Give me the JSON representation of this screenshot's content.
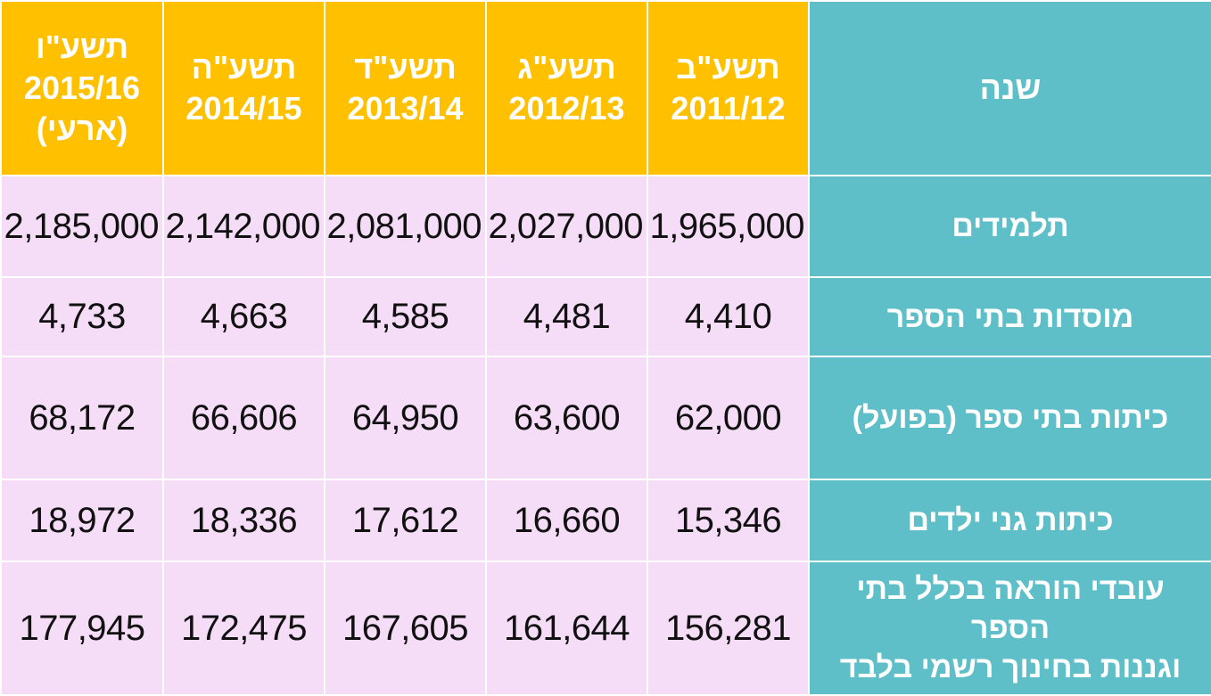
{
  "header": {
    "corner_label": "שנה",
    "years": [
      {
        "line1": "תשע\"ב",
        "line2": "2011/12",
        "line3": ""
      },
      {
        "line1": "תשע\"ג",
        "line2": "2012/13",
        "line3": ""
      },
      {
        "line1": "תשע\"ד",
        "line2": "2013/14",
        "line3": ""
      },
      {
        "line1": "תשע\"ה",
        "line2": "2014/15",
        "line3": ""
      },
      {
        "line1": "תשע\"ו",
        "line2": "2015/16",
        "line3": "(ארעי)"
      }
    ]
  },
  "rows": [
    {
      "label_lines": [
        "תלמידים"
      ],
      "values": [
        "1,965,000",
        "2,027,000",
        "2,081,000",
        "2,142,000",
        "2,185,000"
      ]
    },
    {
      "label_lines": [
        "מוסדות בתי הספר"
      ],
      "values": [
        "4,410",
        "4,481",
        "4,585",
        "4,663",
        "4,733"
      ]
    },
    {
      "label_lines": [
        "כיתות בתי ספר (בפועל)"
      ],
      "values": [
        "62,000",
        "63,600",
        "64,950",
        "66,606",
        "68,172"
      ]
    },
    {
      "label_lines": [
        "כיתות גני ילדים"
      ],
      "values": [
        "15,346",
        "16,660",
        "17,612",
        "18,336",
        "18,972"
      ]
    },
    {
      "label_lines": [
        "עובדי הוראה בכלל בתי הספר",
        "וגננות בחינוך רשמי בלבד"
      ],
      "values": [
        "156,281",
        "161,644",
        "167,605",
        "172,475",
        "177,945"
      ]
    }
  ],
  "colors": {
    "header_bg": "#ffc000",
    "label_bg": "#5fbfc9",
    "cell_bg": "#f5dcf7",
    "border": "#ffffff"
  }
}
